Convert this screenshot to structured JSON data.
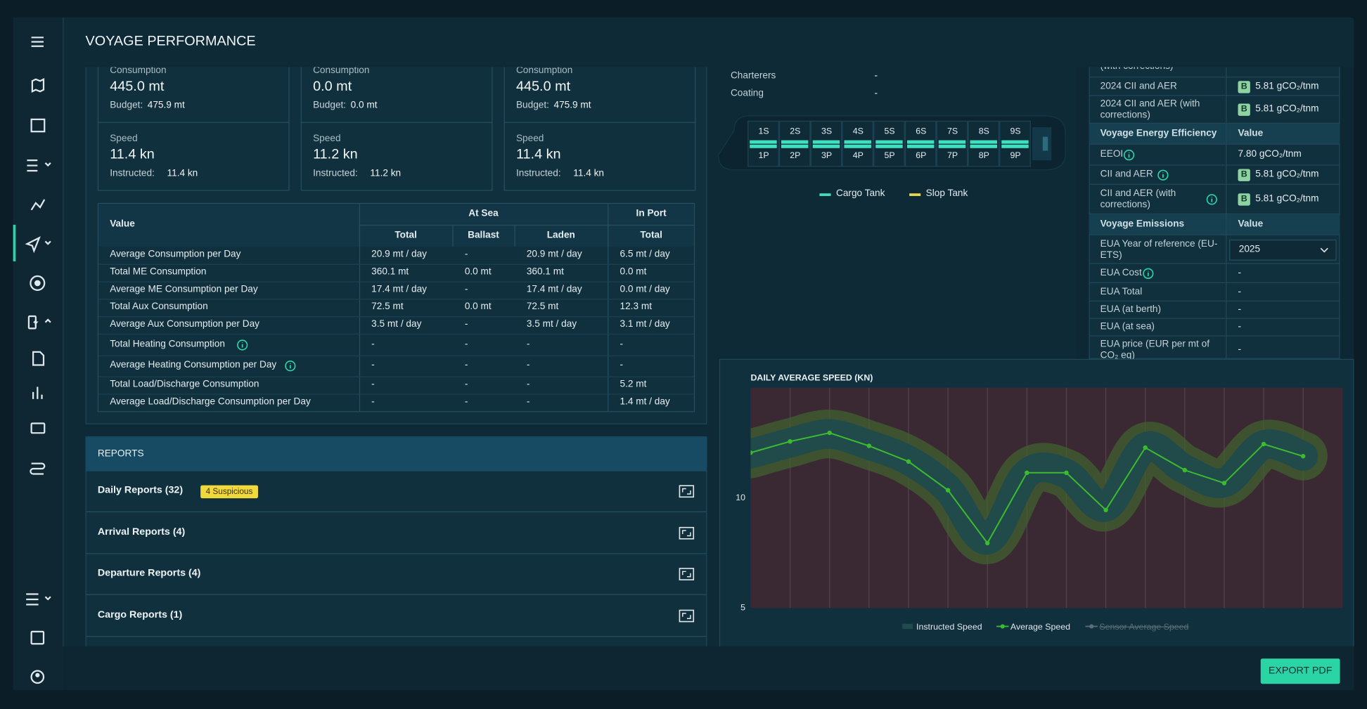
{
  "header": {
    "title": "VOYAGE PERFORMANCE"
  },
  "summary": {
    "cards": [
      {
        "consumption": {
          "label": "Consumption",
          "value": "445.0 mt",
          "sub_label": "Budget:",
          "sub_value": "475.9 mt"
        },
        "speed": {
          "label": "Speed",
          "value": "11.4 kn",
          "sub_label": "Instructed:",
          "sub_value": "11.4 kn"
        }
      },
      {
        "consumption": {
          "label": "Consumption",
          "value": "0.0 mt",
          "sub_label": "Budget:",
          "sub_value": "0.0 mt"
        },
        "speed": {
          "label": "Speed",
          "value": "11.2 kn",
          "sub_label": "Instructed:",
          "sub_value": "11.2 kn"
        }
      },
      {
        "consumption": {
          "label": "Consumption",
          "value": "445.0 mt",
          "sub_label": "Budget:",
          "sub_value": "475.9 mt"
        },
        "speed": {
          "label": "Speed",
          "value": "11.4 kn",
          "sub_label": "Instructed:",
          "sub_value": "11.4 kn"
        }
      }
    ]
  },
  "table": {
    "value_header": "Value",
    "groups": [
      {
        "label": "At Sea",
        "columns": [
          "Total",
          "Ballast",
          "Laden"
        ]
      },
      {
        "label": "In Port",
        "columns": [
          "Total"
        ]
      }
    ],
    "rows": [
      {
        "cells": [
          "Average Consumption per Day",
          "20.9 mt / day",
          "-",
          "20.9 mt / day",
          "6.5 mt / day"
        ]
      },
      {
        "cells": [
          "Total ME Consumption",
          "360.1 mt",
          "0.0 mt",
          "360.1 mt",
          "0.0 mt"
        ]
      },
      {
        "cells": [
          "Average ME Consumption per Day",
          "17.4 mt / day",
          "-",
          "17.4 mt / day",
          "0.0 mt / day"
        ]
      },
      {
        "cells": [
          "Total Aux Consumption",
          "72.5 mt",
          "0.0 mt",
          "72.5 mt",
          "12.3 mt"
        ]
      },
      {
        "cells": [
          "Average Aux Consumption per Day",
          "3.5 mt / day",
          "-",
          "3.5 mt / day",
          "3.1 mt / day"
        ]
      },
      {
        "cells": [
          "Total Heating Consumption",
          "-",
          "-",
          "-",
          "-"
        ],
        "info": true
      },
      {
        "cells": [
          "Average Heating Consumption per Day",
          "-",
          "-",
          "-",
          "-"
        ],
        "info": true
      },
      {
        "cells": [
          "Total Load/Discharge Consumption",
          "-",
          "-",
          "-",
          "5.2 mt"
        ]
      },
      {
        "cells": [
          "Average Load/Discharge Consumption per Day",
          "-",
          "-",
          "-",
          "1.4 mt / day"
        ]
      }
    ]
  },
  "reports": {
    "title": "REPORTS",
    "items": [
      {
        "name": "Daily Reports (32)",
        "badge": "4 Suspicious"
      },
      {
        "name": "Arrival Reports (4)"
      },
      {
        "name": "Departure Reports (4)"
      },
      {
        "name": "Cargo Reports (1)"
      }
    ]
  },
  "vessel": {
    "info": [
      {
        "label": "Charterers",
        "value": "-"
      },
      {
        "label": "Coating",
        "value": "-"
      }
    ],
    "tanks": {
      "starboard": [
        "1S",
        "2S",
        "3S",
        "4S",
        "5S",
        "6S",
        "7S",
        "8S",
        "9S"
      ],
      "port": [
        "1P",
        "2P",
        "3P",
        "4P",
        "5P",
        "6P",
        "7P",
        "8P",
        "9P"
      ]
    },
    "legend": [
      {
        "name": "Cargo Tank",
        "color": "#3fe0c0"
      },
      {
        "name": "Slop Tank",
        "color": "#e8d84a"
      }
    ]
  },
  "efficiency": {
    "rows": [
      {
        "label": "(with corrections)"
      },
      {
        "label": "2024 CII and AER",
        "badge": "B",
        "value": "5.81 gCO₂/tnm"
      },
      {
        "label": "2024 CII and AER (with corrections)",
        "badge": "B",
        "value": "5.81 gCO₂/tnm"
      },
      {
        "header": true,
        "label": "Voyage Energy Efficiency",
        "value": "Value"
      },
      {
        "label": "EEOI",
        "info": true,
        "value": "7.80 gCO₂/tnm"
      },
      {
        "label": "CII and AER",
        "info": true,
        "badge": "B",
        "value": "5.81 gCO₂/tnm"
      },
      {
        "label": "CII and AER (with corrections)",
        "info": true,
        "badge": "B",
        "value": "5.81 gCO₂/tnm"
      },
      {
        "header": true,
        "label": "Voyage Emissions",
        "value": "Value"
      },
      {
        "label": "EUA Year of reference (EU-ETS)",
        "select": true,
        "value": "2025"
      },
      {
        "label": "EUA Cost",
        "info": true,
        "value": "-"
      },
      {
        "label": "EUA Total",
        "value": "-"
      },
      {
        "label": "EUA (at berth)",
        "value": "-"
      },
      {
        "label": "EUA (at sea)",
        "value": "-"
      },
      {
        "label": "EUA price (EUR per mt of CO₂ eq)",
        "value": "-"
      }
    ]
  },
  "chart_data": {
    "type": "line",
    "title": "DAILY AVERAGE SPEED (KN)",
    "categories": [
      null,
      null,
      null,
      null,
      null,
      null,
      null,
      null,
      null,
      null,
      null,
      null,
      null,
      null,
      null
    ],
    "series": [
      {
        "name": "Instructed Speed",
        "style": "band",
        "color": "#1f4b4c",
        "values": [
          12.0,
          12.5,
          12.9,
          12.4,
          11.7,
          10.4,
          8.1,
          11.1,
          11.1,
          9.6,
          12.3,
          11.3,
          10.7,
          12.4,
          11.9
        ]
      },
      {
        "name": "Average Speed",
        "style": "line",
        "color": "#3dbb2f",
        "values": [
          12.05,
          12.56,
          12.95,
          12.36,
          11.65,
          10.35,
          7.95,
          11.14,
          11.14,
          9.45,
          12.28,
          11.26,
          10.67,
          12.44,
          11.89
        ]
      },
      {
        "name": "Sensor Average Speed",
        "style": "line",
        "color": "#8a9aa3",
        "visible": false,
        "values": [
          null,
          null,
          null,
          null,
          null,
          null,
          null,
          null,
          null,
          null,
          null,
          null,
          null,
          null,
          null
        ]
      }
    ],
    "ylim": [
      5,
      15
    ],
    "yticks": [
      5,
      10
    ],
    "grid": "x"
  },
  "actions": {
    "export": "EXPORT PDF"
  }
}
